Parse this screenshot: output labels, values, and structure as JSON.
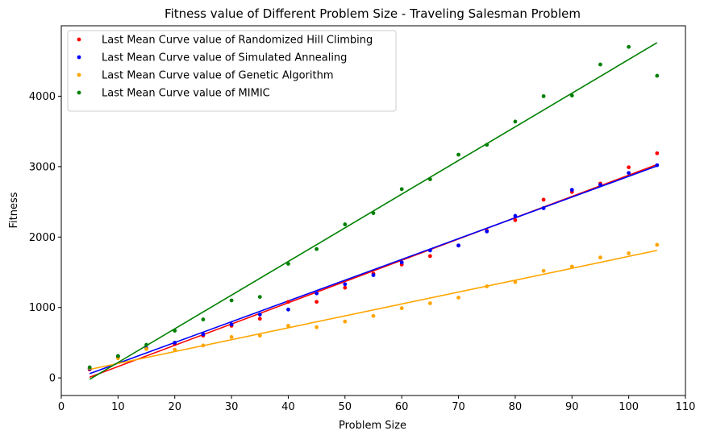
{
  "chart_data": {
    "type": "scatter",
    "title": "Fitness value of Different Problem Size - Traveling Salesman Problem",
    "xlabel": "Problem Size",
    "ylabel": "Fitness",
    "xlim": [
      0,
      110
    ],
    "ylim": [
      -250,
      5000
    ],
    "xticks": [
      0,
      10,
      20,
      30,
      40,
      50,
      60,
      70,
      80,
      90,
      100,
      110
    ],
    "yticks": [
      0,
      1000,
      2000,
      3000,
      4000
    ],
    "grid": false,
    "legend_position": "top-left",
    "x": [
      5,
      10,
      15,
      20,
      25,
      30,
      35,
      40,
      45,
      50,
      55,
      60,
      65,
      70,
      75,
      80,
      85,
      90,
      95,
      100,
      105
    ],
    "series": [
      {
        "name": "Last Mean Curve value of Randomized Hill Climbing",
        "color": "#ff0000",
        "values": [
          120,
          300,
          420,
          480,
          600,
          740,
          840,
          1080,
          1080,
          1280,
          1480,
          1610,
          1730,
          1880,
          2090,
          2240,
          2530,
          2640,
          2760,
          2990,
          3190
        ],
        "fit_line": {
          "x": [
            5,
            105
          ],
          "y": [
            10,
            3030
          ]
        }
      },
      {
        "name": "Last Mean Curve value of Simulated Annealing",
        "color": "#0000ff",
        "values": [
          130,
          310,
          420,
          500,
          620,
          760,
          900,
          970,
          1200,
          1330,
          1460,
          1640,
          1810,
          1880,
          2080,
          2300,
          2410,
          2670,
          2740,
          2910,
          3020
        ],
        "fit_line": {
          "x": [
            5,
            105
          ],
          "y": [
            60,
            3010
          ]
        }
      },
      {
        "name": "Last Mean Curve value of Genetic Algorithm",
        "color": "#ffa500",
        "values": [
          140,
          280,
          410,
          400,
          460,
          580,
          600,
          740,
          720,
          800,
          880,
          990,
          1060,
          1140,
          1300,
          1360,
          1520,
          1580,
          1710,
          1770,
          1890
        ],
        "fit_line": {
          "x": [
            5,
            105
          ],
          "y": [
            120,
            1810
          ]
        }
      },
      {
        "name": "Last Mean Curve value of MIMIC",
        "color": "#008000",
        "values": [
          150,
          310,
          470,
          670,
          830,
          1100,
          1150,
          1620,
          1830,
          2180,
          2340,
          2680,
          2820,
          3170,
          3310,
          3640,
          4000,
          4010,
          4450,
          4700,
          4290
        ],
        "fit_line": {
          "x": [
            5,
            105
          ],
          "y": [
            -20,
            4760
          ]
        }
      }
    ]
  }
}
